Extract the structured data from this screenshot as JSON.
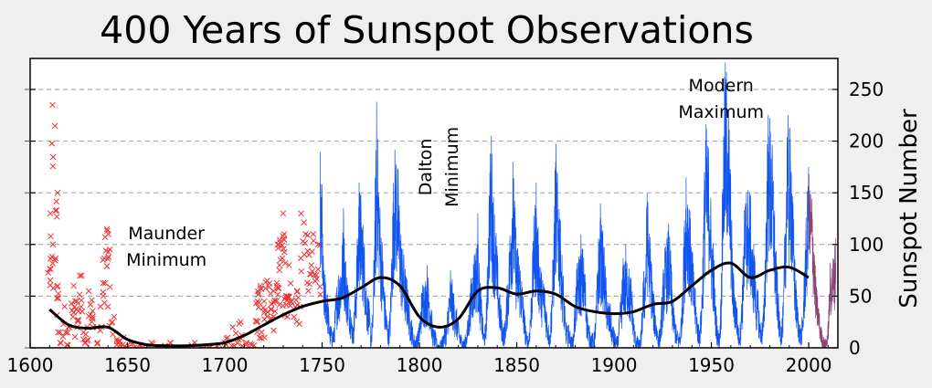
{
  "chart_data": {
    "type": "line",
    "title": "400 Years of Sunspot Observations",
    "ylabel": "Sunspot Number",
    "xlim": [
      1600,
      2015
    ],
    "ylim": [
      0,
      280
    ],
    "xticks": [
      1600,
      1650,
      1700,
      1750,
      1800,
      1850,
      1900,
      1950,
      2000
    ],
    "yticks": [
      0,
      50,
      100,
      150,
      200,
      250
    ],
    "grid": "horizontal-dashed",
    "y_axis_position": "right",
    "annotations": [
      {
        "lines": [
          "Maunder",
          "Minimum"
        ],
        "x": 1670,
        "y": 105,
        "rotation": 0
      },
      {
        "lines": [
          "Dalton",
          "Minimum"
        ],
        "x": 1806,
        "y": 175,
        "rotation": -90
      },
      {
        "lines": [
          "Modern",
          "Maximum"
        ],
        "x": 1955,
        "y": 248,
        "rotation": 0
      }
    ],
    "colors": {
      "early_observations": "#ee3333",
      "monthly_record": "#1155ee",
      "recent_record": "#884477",
      "smoothed_average": "#000000",
      "grid": "#aaaaaa"
    },
    "series": [
      {
        "marker": "x",
        "x": [
          1610,
          1611,
          1612,
          1613,
          1614,
          1615,
          1616,
          1617,
          1618,
          1619,
          1620,
          1621,
          1622,
          1624,
          1625,
          1626,
          1627,
          1628,
          1629,
          1630,
          1631,
          1632,
          1633,
          1634,
          1635,
          1637,
          1638,
          1639,
          1640,
          1641,
          1642,
          1643,
          1644,
          1645,
          1646,
          1647,
          1648,
          1650,
          1652,
          1654,
          1656,
          1660,
          1663,
          1666,
          1670,
          1672,
          1676,
          1680,
          1684,
          1688,
          1692,
          1696,
          1700,
          1702,
          1704,
          1705,
          1706,
          1707,
          1708,
          1710,
          1712,
          1714,
          1716,
          1717,
          1718,
          1719,
          1720,
          1721,
          1722,
          1724,
          1725,
          1726,
          1727,
          1728,
          1729,
          1730,
          1731,
          1732,
          1734,
          1736,
          1737,
          1738,
          1740,
          1742,
          1744,
          1746,
          1748
        ],
        "values": [
          130,
          100,
          235,
          150,
          60,
          15,
          5,
          40,
          15,
          3,
          20,
          30,
          60,
          20,
          45,
          70,
          15,
          5,
          20,
          8,
          55,
          25,
          30,
          5,
          20,
          40,
          85,
          115,
          110,
          40,
          30,
          25,
          8,
          5,
          3,
          10,
          3,
          0,
          5,
          0,
          3,
          0,
          5,
          0,
          2,
          5,
          0,
          0,
          5,
          0,
          0,
          3,
          5,
          10,
          2,
          20,
          8,
          25,
          12,
          3,
          5,
          3,
          25,
          45,
          60,
          15,
          10,
          45,
          65,
          55,
          30,
          60,
          80,
          100,
          130,
          110,
          50,
          50,
          80,
          30,
          55,
          40,
          130,
          110,
          90,
          110,
          100
        ]
      },
      {
        "x": [
          1749,
          1750,
          1751,
          1752,
          1753,
          1754,
          1755,
          1756,
          1757,
          1758,
          1759,
          1760,
          1761,
          1762,
          1763,
          1764,
          1765,
          1766,
          1767,
          1768,
          1769,
          1770,
          1771,
          1772,
          1773,
          1774,
          1775,
          1776,
          1777,
          1778,
          1779,
          1780,
          1781,
          1782,
          1783,
          1784,
          1785,
          1786,
          1787,
          1788,
          1789,
          1790,
          1791,
          1792,
          1793,
          1794,
          1795,
          1796,
          1797,
          1798,
          1799,
          1800,
          1801,
          1802,
          1803,
          1804,
          1805,
          1806,
          1807,
          1808,
          1809,
          1810,
          1811,
          1812,
          1813,
          1814,
          1815,
          1816,
          1817,
          1818,
          1819,
          1820,
          1821,
          1822,
          1823,
          1824,
          1825,
          1826,
          1827,
          1828,
          1829,
          1830,
          1831,
          1832,
          1833,
          1834,
          1835,
          1836,
          1837,
          1838,
          1839,
          1840,
          1841,
          1842,
          1843,
          1844,
          1845,
          1846,
          1847,
          1848,
          1849,
          1850,
          1851,
          1852,
          1853,
          1854,
          1855,
          1856,
          1857,
          1858,
          1859,
          1860,
          1861,
          1862,
          1863,
          1864,
          1865,
          1866,
          1867,
          1868,
          1869,
          1870,
          1871,
          1872,
          1873,
          1874,
          1875,
          1876,
          1877,
          1878,
          1879,
          1880,
          1881,
          1882,
          1883,
          1884,
          1885,
          1886,
          1887,
          1888,
          1889,
          1890,
          1891,
          1892,
          1893,
          1894,
          1895,
          1896,
          1897,
          1898,
          1899,
          1900,
          1901,
          1902,
          1903,
          1904,
          1905,
          1906,
          1907,
          1908,
          1909,
          1910,
          1911,
          1912,
          1913,
          1914,
          1915,
          1916,
          1917,
          1918,
          1919,
          1920,
          1921,
          1922,
          1923,
          1924,
          1925,
          1926,
          1927,
          1928,
          1929,
          1930,
          1931,
          1932,
          1933,
          1934,
          1935,
          1936,
          1937,
          1938,
          1939,
          1940,
          1941,
          1942,
          1943,
          1944,
          1945,
          1946,
          1947,
          1948,
          1949,
          1950,
          1951,
          1952,
          1953,
          1954,
          1955,
          1956,
          1957,
          1958,
          1959,
          1960,
          1961,
          1962,
          1963,
          1964,
          1965,
          1966,
          1967,
          1968,
          1969,
          1970,
          1971,
          1972,
          1973,
          1974,
          1975,
          1976,
          1977,
          1978,
          1979,
          1980,
          1981,
          1982,
          1983,
          1984,
          1985,
          1986,
          1987,
          1988,
          1989,
          1990,
          1991,
          1992,
          1993,
          1994,
          1995,
          1996,
          1997,
          1998,
          1999,
          2000
        ],
        "values": [
          130,
          83,
          48,
          48,
          31,
          12,
          10,
          10,
          32,
          48,
          54,
          63,
          86,
          61,
          45,
          36,
          21,
          11,
          38,
          70,
          106,
          101,
          82,
          66,
          35,
          31,
          7,
          20,
          92,
          154,
          126,
          85,
          68,
          38,
          23,
          10,
          24,
          83,
          132,
          131,
          118,
          90,
          67,
          60,
          47,
          41,
          21,
          16,
          6,
          4,
          7,
          14,
          34,
          45,
          43,
          48,
          42,
          28,
          10,
          8,
          2,
          0,
          1,
          5,
          12,
          14,
          35,
          46,
          41,
          30,
          24,
          16,
          7,
          4,
          2,
          8,
          17,
          36,
          50,
          62,
          67,
          71,
          48,
          28,
          8,
          13,
          57,
          122,
          138,
          103,
          86,
          63,
          37,
          24,
          11,
          15,
          40,
          62,
          98,
          124,
          96,
          66,
          64,
          54,
          39,
          21,
          7,
          4,
          23,
          55,
          94,
          96,
          77,
          59,
          44,
          47,
          30,
          16,
          7,
          37,
          74,
          139,
          111,
          102,
          66,
          45,
          17,
          11,
          12,
          3,
          6,
          32,
          54,
          60,
          64,
          64,
          52,
          25,
          13,
          7,
          6,
          7,
          36,
          73,
          85,
          78,
          64,
          42,
          26,
          27,
          12,
          10,
          3,
          5,
          24,
          42,
          64,
          54,
          62,
          49,
          44,
          19,
          6,
          4,
          1,
          10,
          47,
          57,
          104,
          81,
          64,
          38,
          26,
          14,
          6,
          17,
          44,
          64,
          69,
          78,
          65,
          36,
          21,
          11,
          6,
          9,
          36,
          80,
          114,
          110,
          89,
          68,
          48,
          31,
          16,
          10,
          33,
          93,
          152,
          136,
          135,
          84,
          69,
          32,
          14,
          4,
          38,
          142,
          190,
          185,
          159,
          112,
          54,
          38,
          28,
          10,
          15,
          47,
          94,
          106,
          105,
          104,
          67,
          69,
          38,
          35,
          16,
          13,
          28,
          93,
          155,
          155,
          140,
          116,
          67,
          46,
          18,
          13,
          29,
          100,
          158,
          142,
          146,
          94,
          55,
          30,
          18,
          9,
          22,
          64,
          93,
          120
        ],
        "peaks": [
          [
            1750,
            158
          ],
          [
            1761,
            135
          ],
          [
            1769,
            160
          ],
          [
            1778,
            238
          ],
          [
            1788,
            175
          ],
          [
            1804,
            80
          ],
          [
            1816,
            75
          ],
          [
            1830,
            130
          ],
          [
            1837,
            205
          ],
          [
            1848,
            180
          ],
          [
            1860,
            160
          ],
          [
            1870,
            180
          ],
          [
            1883,
            110
          ],
          [
            1893,
            140
          ],
          [
            1906,
            100
          ],
          [
            1917,
            150
          ],
          [
            1928,
            120
          ],
          [
            1937,
            165
          ],
          [
            1947,
            200
          ],
          [
            1957,
            255
          ],
          [
            1968,
            150
          ],
          [
            1979,
            190
          ],
          [
            1989,
            200
          ],
          [
            2000,
            175
          ]
        ]
      },
      {
        "x": [
          2000,
          2001,
          2002,
          2003,
          2004,
          2005,
          2006,
          2007,
          2008,
          2009,
          2010,
          2011,
          2012,
          2013,
          2014
        ],
        "values": [
          120,
          111,
          104,
          64,
          40,
          30,
          15,
          8,
          3,
          3,
          16,
          56,
          58,
          65,
          79
        ]
      },
      {
        "x": [
          1610,
          1620,
          1630,
          1640,
          1650,
          1660,
          1670,
          1680,
          1690,
          1700,
          1710,
          1720,
          1730,
          1740,
          1750,
          1760,
          1770,
          1780,
          1790,
          1800,
          1810,
          1820,
          1830,
          1840,
          1850,
          1860,
          1870,
          1880,
          1890,
          1900,
          1910,
          1920,
          1930,
          1940,
          1950,
          1960,
          1970,
          1980,
          1990,
          2000
        ],
        "values": [
          37,
          22,
          19,
          20,
          8,
          3,
          2,
          2,
          3,
          5,
          12,
          22,
          32,
          40,
          45,
          48,
          58,
          68,
          60,
          30,
          20,
          28,
          55,
          58,
          52,
          55,
          52,
          40,
          35,
          33,
          35,
          42,
          45,
          60,
          75,
          82,
          68,
          75,
          78,
          68
        ]
      }
    ]
  }
}
